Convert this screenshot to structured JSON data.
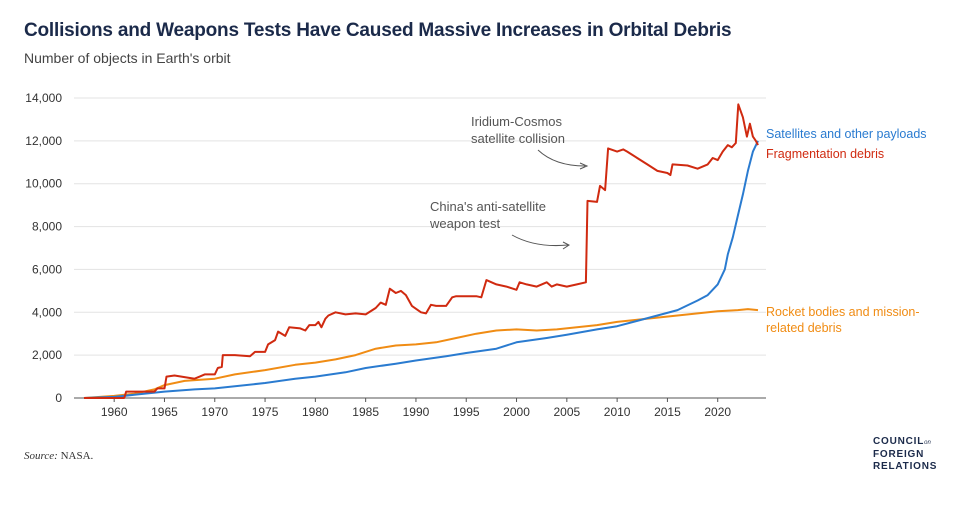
{
  "title": "Collisions and Weapons Tests Have Caused Massive Increases in Orbital Debris",
  "subtitle": "Number of objects in Earth's orbit",
  "source_label": "Source:",
  "source_text": "NASA.",
  "logo": {
    "line1": "COUNCIL",
    "line1_suffix": "on",
    "line2": "FOREIGN",
    "line3": "RELATIONS"
  },
  "chart_data": {
    "type": "line",
    "title": "Collisions and Weapons Tests Have Caused Massive Increases in Orbital Debris",
    "ylabel": "Number of objects in Earth's orbit",
    "xlabel": "",
    "xlim": [
      1957,
      2024
    ],
    "ylim": [
      0,
      14000
    ],
    "x_ticks": [
      1960,
      1965,
      1970,
      1975,
      1980,
      1985,
      1990,
      1995,
      2000,
      2005,
      2010,
      2015,
      2020
    ],
    "y_ticks": [
      0,
      2000,
      4000,
      6000,
      8000,
      10000,
      12000,
      14000
    ],
    "y_tick_labels": [
      "0",
      "2,000",
      "4,000",
      "6,000",
      "8,000",
      "10,000",
      "12,000",
      "14,000"
    ],
    "grid": "horizontal",
    "series": [
      {
        "name": "Fragmentation debris",
        "label_lines": [
          "Fragmentation debris"
        ],
        "color": "#d02a10",
        "points": [
          [
            1957,
            0
          ],
          [
            1961,
            0
          ],
          [
            1961.2,
            300
          ],
          [
            1964,
            300
          ],
          [
            1964.3,
            450
          ],
          [
            1965,
            450
          ],
          [
            1965.2,
            1000
          ],
          [
            1966,
            1050
          ],
          [
            1968,
            900
          ],
          [
            1968.5,
            1000
          ],
          [
            1969,
            1100
          ],
          [
            1970,
            1100
          ],
          [
            1970.3,
            1400
          ],
          [
            1970.7,
            1450
          ],
          [
            1970.8,
            2000
          ],
          [
            1972,
            2000
          ],
          [
            1973.5,
            1950
          ],
          [
            1974,
            2150
          ],
          [
            1975,
            2150
          ],
          [
            1975.3,
            2500
          ],
          [
            1976,
            2700
          ],
          [
            1976.3,
            3100
          ],
          [
            1977,
            2900
          ],
          [
            1977.4,
            3300
          ],
          [
            1978.5,
            3250
          ],
          [
            1979,
            3150
          ],
          [
            1979.4,
            3400
          ],
          [
            1980,
            3400
          ],
          [
            1980.3,
            3550
          ],
          [
            1980.6,
            3300
          ],
          [
            1981,
            3700
          ],
          [
            1981.3,
            3850
          ],
          [
            1982,
            4000
          ],
          [
            1983,
            3900
          ],
          [
            1984,
            3950
          ],
          [
            1985,
            3900
          ],
          [
            1986,
            4200
          ],
          [
            1986.5,
            4450
          ],
          [
            1987,
            4350
          ],
          [
            1987.4,
            5100
          ],
          [
            1988,
            4900
          ],
          [
            1988.5,
            5000
          ],
          [
            1989,
            4800
          ],
          [
            1989.6,
            4300
          ],
          [
            1990.5,
            4000
          ],
          [
            1991,
            3950
          ],
          [
            1991.5,
            4350
          ],
          [
            1992,
            4300
          ],
          [
            1993,
            4300
          ],
          [
            1993.6,
            4700
          ],
          [
            1994,
            4750
          ],
          [
            1995,
            4750
          ],
          [
            1996,
            4750
          ],
          [
            1996.5,
            4700
          ],
          [
            1997,
            5500
          ],
          [
            1998,
            5300
          ],
          [
            1999,
            5200
          ],
          [
            2000,
            5050
          ],
          [
            2000.3,
            5400
          ],
          [
            2001,
            5300
          ],
          [
            2002,
            5200
          ],
          [
            2003,
            5400
          ],
          [
            2003.5,
            5200
          ],
          [
            2004,
            5300
          ],
          [
            2005,
            5200
          ],
          [
            2006,
            5300
          ],
          [
            2006.9,
            5400
          ],
          [
            2007.05,
            9200
          ],
          [
            2008,
            9150
          ],
          [
            2008.3,
            9900
          ],
          [
            2008.8,
            9700
          ],
          [
            2009.1,
            11650
          ],
          [
            2010,
            11500
          ],
          [
            2010.6,
            11600
          ],
          [
            2011,
            11500
          ],
          [
            2012,
            11200
          ],
          [
            2013,
            10900
          ],
          [
            2014,
            10600
          ],
          [
            2015,
            10500
          ],
          [
            2015.3,
            10400
          ],
          [
            2015.5,
            10900
          ],
          [
            2017,
            10850
          ],
          [
            2018,
            10700
          ],
          [
            2019,
            10900
          ],
          [
            2019.5,
            11200
          ],
          [
            2020,
            11100
          ],
          [
            2020.5,
            11500
          ],
          [
            2021,
            11800
          ],
          [
            2021.4,
            11700
          ],
          [
            2021.8,
            11900
          ],
          [
            2022.05,
            13700
          ],
          [
            2022.5,
            13100
          ],
          [
            2022.9,
            12200
          ],
          [
            2023.2,
            12800
          ],
          [
            2023.5,
            12200
          ],
          [
            2023.8,
            12000
          ],
          [
            2024,
            11800
          ]
        ]
      },
      {
        "name": "Satellites and other payloads",
        "label_lines": [
          "Satellites and other payloads"
        ],
        "color": "#2a7bd0",
        "points": [
          [
            1957,
            0
          ],
          [
            1960,
            50
          ],
          [
            1962,
            150
          ],
          [
            1965,
            300
          ],
          [
            1968,
            400
          ],
          [
            1970,
            450
          ],
          [
            1975,
            700
          ],
          [
            1978,
            900
          ],
          [
            1980,
            1000
          ],
          [
            1983,
            1200
          ],
          [
            1985,
            1400
          ],
          [
            1988,
            1600
          ],
          [
            1990,
            1750
          ],
          [
            1993,
            1950
          ],
          [
            1995,
            2100
          ],
          [
            1998,
            2300
          ],
          [
            2000,
            2600
          ],
          [
            2003,
            2800
          ],
          [
            2005,
            2950
          ],
          [
            2008,
            3200
          ],
          [
            2010,
            3350
          ],
          [
            2012,
            3600
          ],
          [
            2014,
            3850
          ],
          [
            2016,
            4100
          ],
          [
            2018,
            4550
          ],
          [
            2019,
            4800
          ],
          [
            2020,
            5300
          ],
          [
            2020.7,
            6000
          ],
          [
            2021,
            6700
          ],
          [
            2021.5,
            7500
          ],
          [
            2022,
            8500
          ],
          [
            2022.5,
            9500
          ],
          [
            2023,
            10600
          ],
          [
            2023.5,
            11500
          ],
          [
            2024,
            12000
          ]
        ]
      },
      {
        "name": "Rocket bodies and mission-related debris",
        "label_lines": [
          "Rocket bodies and mission-",
          "related debris"
        ],
        "color": "#f08c14",
        "points": [
          [
            1957,
            0
          ],
          [
            1960,
            100
          ],
          [
            1962,
            200
          ],
          [
            1964,
            400
          ],
          [
            1965,
            600
          ],
          [
            1967,
            800
          ],
          [
            1970,
            900
          ],
          [
            1972,
            1100
          ],
          [
            1975,
            1300
          ],
          [
            1978,
            1550
          ],
          [
            1980,
            1650
          ],
          [
            1982,
            1800
          ],
          [
            1984,
            2000
          ],
          [
            1986,
            2300
          ],
          [
            1988,
            2450
          ],
          [
            1990,
            2500
          ],
          [
            1992,
            2600
          ],
          [
            1994,
            2800
          ],
          [
            1996,
            3000
          ],
          [
            1998,
            3150
          ],
          [
            2000,
            3200
          ],
          [
            2002,
            3150
          ],
          [
            2004,
            3200
          ],
          [
            2006,
            3300
          ],
          [
            2008,
            3400
          ],
          [
            2010,
            3550
          ],
          [
            2012,
            3650
          ],
          [
            2014,
            3750
          ],
          [
            2016,
            3850
          ],
          [
            2018,
            3950
          ],
          [
            2020,
            4050
          ],
          [
            2022,
            4100
          ],
          [
            2023,
            4150
          ],
          [
            2024,
            4100
          ]
        ]
      }
    ],
    "annotations": [
      {
        "lines": [
          "Iridium-Cosmos",
          "satellite collision"
        ],
        "x": 2009,
        "y": 10800
      },
      {
        "lines": [
          "China's anti-satellite",
          "weapon test"
        ],
        "x": 2007,
        "y": 7000
      }
    ]
  }
}
